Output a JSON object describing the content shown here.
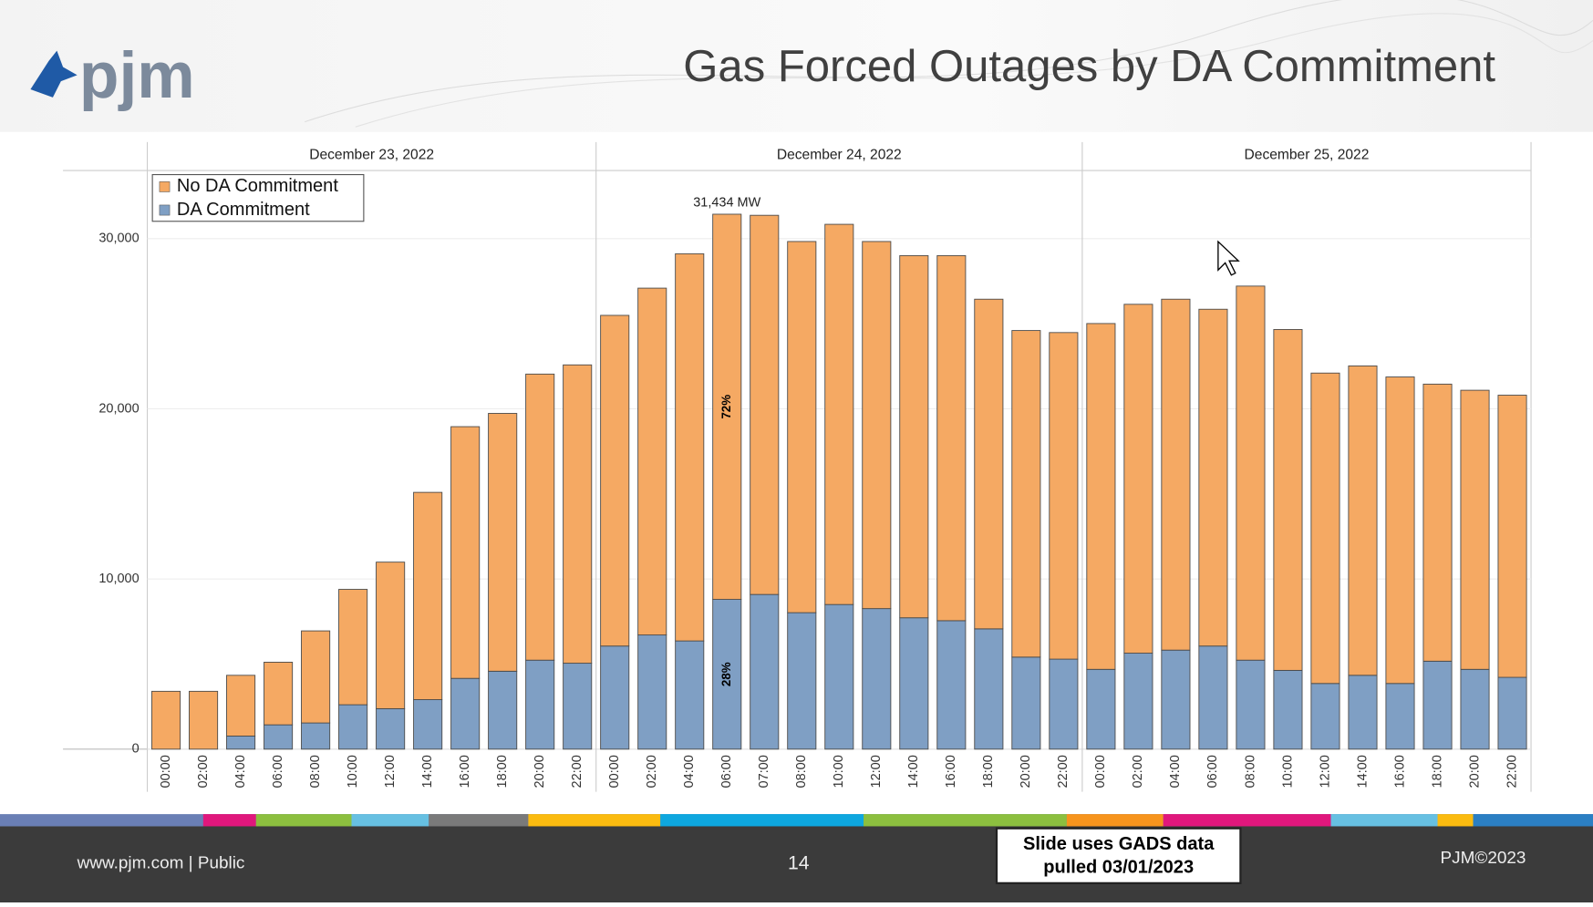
{
  "slide": {
    "logo": "pjm",
    "footer_left": "www.pjm.com | Public",
    "page_number": "14",
    "note_line1": "Slide uses GADS data",
    "note_line2": "pulled 03/01/2023",
    "footer_right": "PJM©2023"
  },
  "chart_data": {
    "type": "bar",
    "stacked": true,
    "title": "Gas Forced Outages by DA Commitment",
    "groups": [
      {
        "label": "December 23, 2022",
        "count": 12
      },
      {
        "label": "December 24, 2022",
        "count": 13
      },
      {
        "label": "December 25, 2022",
        "count": 12
      }
    ],
    "categories": [
      "00:00",
      "02:00",
      "04:00",
      "06:00",
      "08:00",
      "10:00",
      "12:00",
      "14:00",
      "16:00",
      "18:00",
      "20:00",
      "22:00",
      "00:00",
      "02:00",
      "04:00",
      "06:00",
      "07:00",
      "08:00",
      "10:00",
      "12:00",
      "14:00",
      "16:00",
      "18:00",
      "20:00",
      "22:00",
      "00:00",
      "02:00",
      "04:00",
      "06:00",
      "08:00",
      "10:00",
      "12:00",
      "14:00",
      "16:00",
      "18:00",
      "20:00",
      "22:00"
    ],
    "series": [
      {
        "name": "DA Commitment",
        "color": "#7f9fc4",
        "values": [
          0,
          0,
          770,
          1430,
          1540,
          2610,
          2380,
          2910,
          4160,
          4580,
          5230,
          5050,
          6060,
          6710,
          6360,
          8800,
          9090,
          8020,
          8500,
          8260,
          7720,
          7550,
          7070,
          5410,
          5290,
          4690,
          5640,
          5820,
          6060,
          5230,
          4630,
          3860,
          4340,
          3860,
          5170,
          4690,
          4220
        ]
      },
      {
        "name": "No DA Commitment",
        "color": "#f5a963",
        "values": [
          3400,
          3400,
          3570,
          3680,
          5410,
          6780,
          8610,
          12180,
          14790,
          15150,
          16810,
          17530,
          19430,
          20380,
          22750,
          22634,
          22280,
          21810,
          22340,
          21570,
          21280,
          21450,
          19370,
          19190,
          19190,
          20320,
          20500,
          20620,
          19790,
          21980,
          20030,
          18240,
          18180,
          18010,
          16280,
          16400,
          16580
        ]
      }
    ],
    "ylim": [
      0,
      34000
    ],
    "yticks": [
      0,
      {
        "value": 10000,
        "label": "10,000"
      },
      {
        "value": 20000,
        "label": "20,000"
      },
      {
        "value": 30000,
        "label": "30,000"
      }
    ],
    "grid": true,
    "legend": "upper-left",
    "annotations": [
      "31,434 MW",
      "72%",
      "28%"
    ]
  }
}
